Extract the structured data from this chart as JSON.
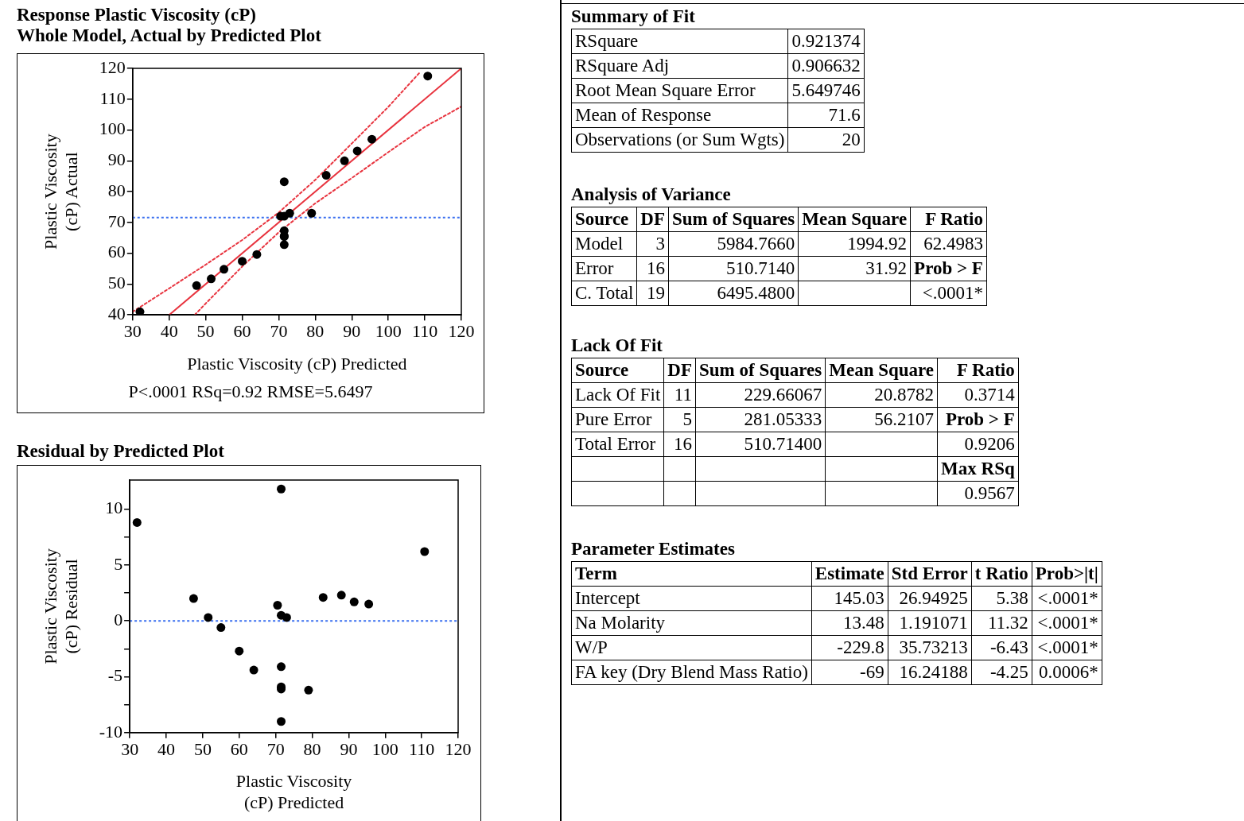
{
  "chart_data": [
    {
      "type": "scatter",
      "title": "Response Plastic Viscosity (cP)",
      "subtitle": "Whole Model, Actual by Predicted Plot",
      "xlabel": "Plastic Viscosity (cP) Predicted",
      "ylabel": "Plastic Viscosity (cP) Actual",
      "annotations": [
        "P<.0001 RSq=0.92 RMSE=5.6497"
      ],
      "xlim": [
        30,
        120
      ],
      "xticks": [
        30,
        40,
        50,
        60,
        70,
        80,
        90,
        100,
        110,
        120
      ],
      "ylim": [
        40,
        120
      ],
      "yticks": [
        40,
        50,
        60,
        70,
        80,
        90,
        100,
        110,
        120
      ],
      "grid": false,
      "legend": false,
      "marker": "circle",
      "series": [
        {
          "type": "scatter",
          "color": "#000000",
          "x": [
            32,
            47.5,
            51.5,
            55,
            60,
            64,
            70.5,
            71.5,
            71.5,
            71.5,
            71.5,
            71.5,
            71.5,
            73,
            79,
            83,
            88,
            91.5,
            95.5,
            110.8
          ],
          "values": [
            41,
            49.5,
            51.7,
            54.8,
            57.4,
            59.6,
            72,
            72,
            83.2,
            67.3,
            65.6,
            65.4,
            62.8,
            73,
            73,
            85.3,
            90,
            93.2,
            97,
            117.5
          ]
        },
        {
          "type": "line",
          "color": "#e8343f",
          "line_style": "solid",
          "marker": "none",
          "x": [
            40,
            120
          ],
          "values": [
            40,
            120
          ]
        },
        {
          "type": "line",
          "color": "#e8343f",
          "line_style": "dotted",
          "marker": "none",
          "x": [
            30,
            40,
            50,
            60,
            70,
            80,
            90,
            100,
            108.5
          ],
          "values": [
            41,
            48.6,
            56.3,
            64.3,
            73.2,
            83.8,
            95.6,
            107.5,
            118.5
          ]
        },
        {
          "type": "line",
          "color": "#e8343f",
          "line_style": "dotted",
          "marker": "none",
          "x": [
            47,
            50,
            60,
            70,
            80,
            90,
            100,
            110,
            120
          ],
          "values": [
            40,
            43.7,
            55.7,
            66.8,
            76.2,
            84.4,
            92.8,
            101,
            107.6
          ]
        }
      ],
      "ref_lines": [
        {
          "axis": "y",
          "value": 71.6,
          "color": "#3a6ff0",
          "line_style": "dotted"
        }
      ]
    },
    {
      "type": "scatter",
      "title": "Residual by Predicted Plot",
      "xlabel": "Plastic Viscosity (cP) Predicted",
      "ylabel": "Plastic Viscosity (cP) Residual",
      "xlim": [
        30,
        120
      ],
      "xticks": [
        30,
        40,
        50,
        60,
        70,
        80,
        90,
        100,
        110,
        120
      ],
      "ylim": [
        -10,
        12.6
      ],
      "yticks": [
        -10,
        {
          "value": -7.5,
          "label": null
        },
        -5,
        {
          "value": -2.5,
          "label": null
        },
        0,
        {
          "value": 2.5,
          "label": null
        },
        5,
        {
          "value": 7.5,
          "label": null
        },
        10
      ],
      "grid": false,
      "legend": false,
      "marker": "circle",
      "series": [
        {
          "type": "scatter",
          "color": "#000000",
          "x": [
            32,
            47.5,
            51.5,
            55,
            60,
            64,
            70.5,
            71.5,
            71.5,
            71.5,
            71.5,
            71.5,
            71.5,
            73,
            79,
            83,
            88,
            91.5,
            95.5,
            110.8
          ],
          "values": [
            8.8,
            2,
            0.3,
            -0.6,
            -2.7,
            -4.4,
            1.4,
            0.5,
            11.8,
            -4.1,
            -5.9,
            -6.1,
            -9,
            0.3,
            -6.2,
            2.1,
            2.3,
            1.7,
            1.5,
            6.2
          ]
        }
      ],
      "ref_lines": [
        {
          "axis": "y",
          "value": 0,
          "color": "#3a6ff0",
          "line_style": "dotted"
        }
      ]
    },
    {
      "type": "other",
      "title": "Summary of Fit",
      "annotations": [
        "RSquare",
        "0.921374",
        "RSquare Adj",
        "0.906632",
        "Root Mean Square Error",
        "5.649746",
        "Mean of Response",
        "71.6",
        "Observations (or Sum Wgts)",
        "20"
      ]
    },
    {
      "type": "other",
      "title": "Analysis of Variance",
      "annotations": [
        "Source",
        "DF",
        "Sum of Squares",
        "Mean Square",
        "F Ratio",
        "Model",
        "3",
        "5984.7660",
        "1994.92",
        "62.4983",
        "Error",
        "16",
        "510.7140",
        "31.92",
        "Prob > F",
        "C. Total",
        "19",
        "6495.4800",
        null,
        "<.0001*"
      ]
    },
    {
      "type": "other",
      "title": "Lack Of Fit",
      "annotations": [
        "Source",
        "DF",
        "Sum of Squares",
        "Mean Square",
        "F Ratio",
        "Lack Of Fit",
        "11",
        "229.66067",
        "20.8782",
        "0.3714",
        "Pure Error",
        "5",
        "281.05333",
        "56.2107",
        "Prob > F",
        "Total Error",
        "16",
        "510.71400",
        null,
        "0.9206",
        null,
        null,
        null,
        null,
        "Max RSq",
        null,
        null,
        null,
        null,
        "0.9567"
      ]
    },
    {
      "type": "other",
      "title": "Parameter Estimates",
      "annotations": [
        "Term",
        "Estimate",
        "Std Error",
        "t Ratio",
        "Prob>|t|",
        "Intercept",
        "145.03",
        "26.94925",
        "5.38",
        "<.0001*",
        "Na Molarity",
        "13.48",
        "1.191071",
        "11.32",
        "<.0001*",
        "W/P",
        "-229.8",
        "35.73213",
        "-6.43",
        "<.0001*",
        "FA key (Dry Blend Mass Ratio)",
        "-69",
        "16.24188",
        "-4.25",
        "0.0006*"
      ]
    }
  ]
}
